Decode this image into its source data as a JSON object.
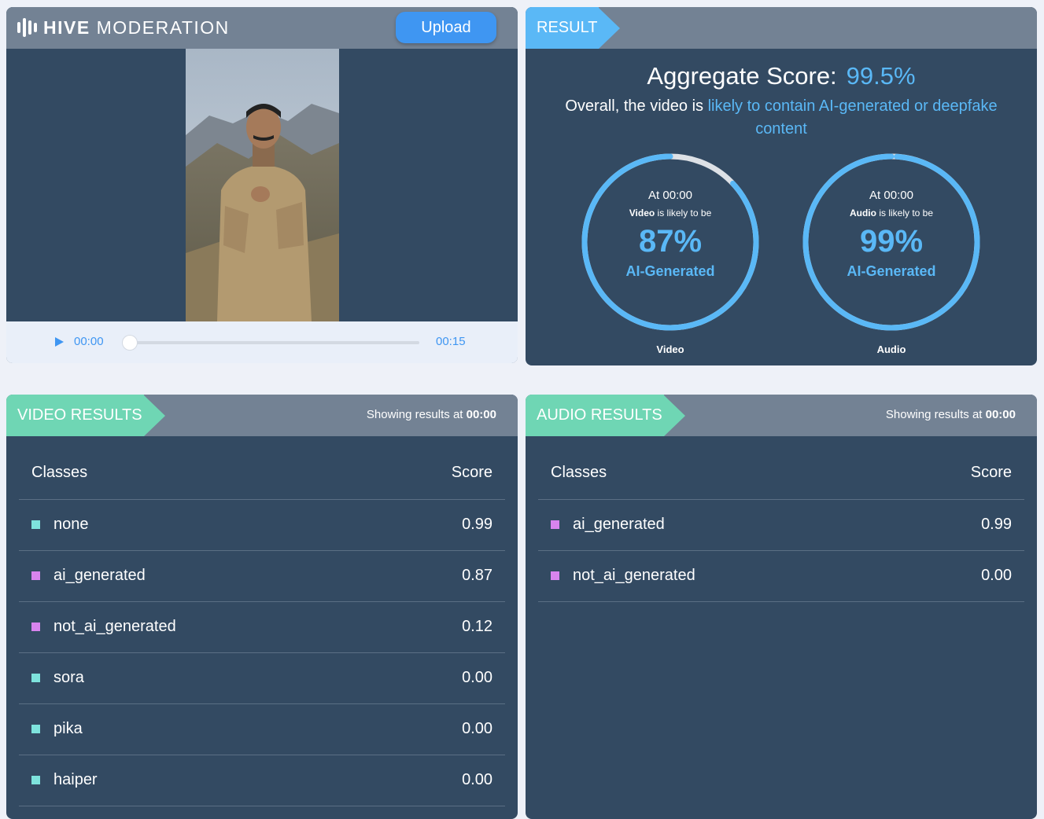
{
  "brand": {
    "bold": "HIVE",
    "light": "MODERATION"
  },
  "upload_label": "Upload",
  "player": {
    "current_time": "00:00",
    "duration": "00:15",
    "progress": 0
  },
  "result": {
    "tab_label": "RESULT",
    "aggregate_label": "Aggregate Score:",
    "aggregate_value": "99.5%",
    "overall_prefix": "Overall, the video is ",
    "overall_highlight": "likely to contain AI-generated or deepfake content",
    "gauges": [
      {
        "at": "At 00:00",
        "type": "Video",
        "likely": " is likely to be",
        "pct_text": "87%",
        "pct": 0.87,
        "label": "AI-Generated",
        "caption": "Video"
      },
      {
        "at": "At 00:00",
        "type": "Audio",
        "likely": " is likely to be",
        "pct_text": "99%",
        "pct": 0.99,
        "label": "AI-Generated",
        "caption": "Audio"
      }
    ]
  },
  "video_results": {
    "tab_label": "VIDEO RESULTS",
    "showing_prefix": "Showing results at ",
    "showing_time": "00:00",
    "col_classes": "Classes",
    "col_score": "Score",
    "rows": [
      {
        "name": "none",
        "score": "0.99",
        "color": "#7ee3dd"
      },
      {
        "name": "ai_generated",
        "score": "0.87",
        "color": "#d884ee"
      },
      {
        "name": "not_ai_generated",
        "score": "0.12",
        "color": "#d884ee"
      },
      {
        "name": "sora",
        "score": "0.00",
        "color": "#7ee3dd"
      },
      {
        "name": "pika",
        "score": "0.00",
        "color": "#7ee3dd"
      },
      {
        "name": "haiper",
        "score": "0.00",
        "color": "#7ee3dd"
      }
    ]
  },
  "audio_results": {
    "tab_label": "AUDIO RESULTS",
    "showing_prefix": "Showing results at ",
    "showing_time": "00:00",
    "col_classes": "Classes",
    "col_score": "Score",
    "rows": [
      {
        "name": "ai_generated",
        "score": "0.99",
        "color": "#d884ee"
      },
      {
        "name": "not_ai_generated",
        "score": "0.00",
        "color": "#d884ee"
      }
    ]
  },
  "colors": {
    "accent_blue": "#5ab8f6",
    "result_tag": "#5ab8f6",
    "results_tag": "#6fd6b4",
    "header_gray": "#738294",
    "panel": "#334a62"
  }
}
